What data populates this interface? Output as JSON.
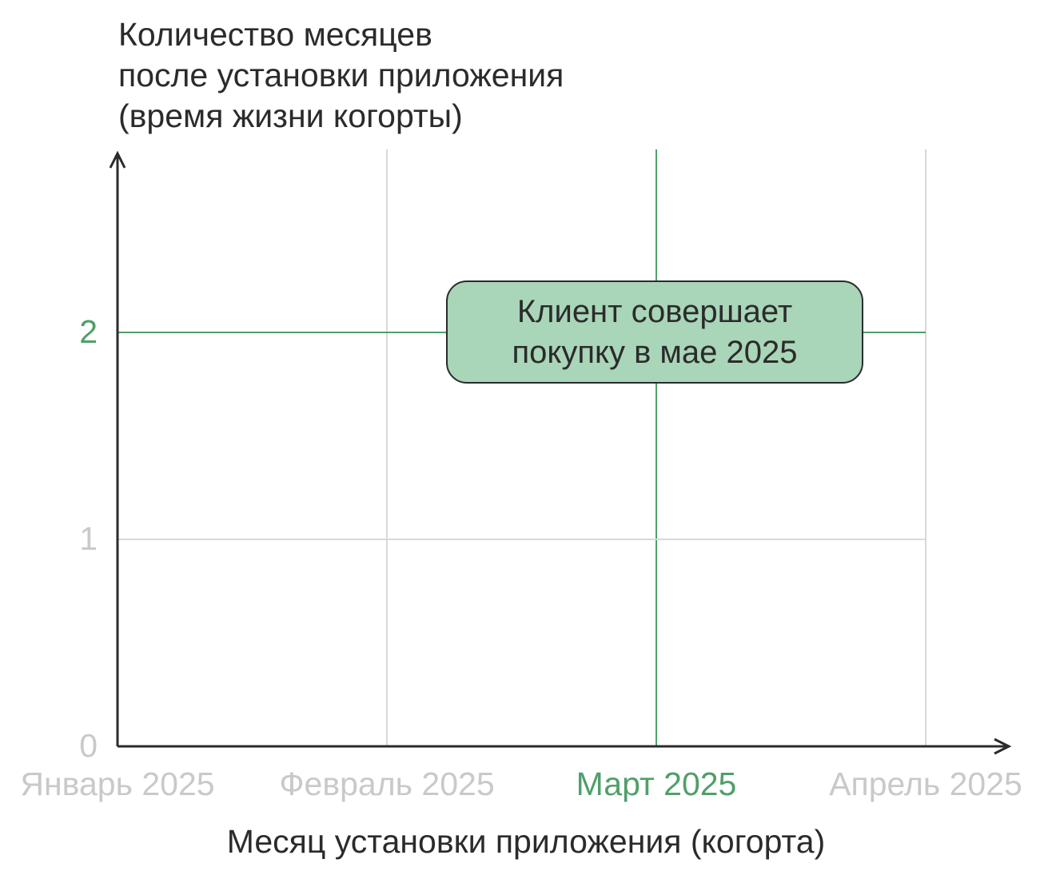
{
  "chart_data": {
    "type": "diagram",
    "ylabel_lines": [
      "Количество месяцев",
      "после установки приложения",
      "(время жизни когорты)"
    ],
    "xlabel": "Месяц установки приложения (когорта)",
    "categories": [
      "Январь 2025",
      "Февраль 2025",
      "Март 2025",
      "Апрель 2025"
    ],
    "y_ticks": [
      0,
      1,
      2
    ],
    "ylim": [
      0,
      2.9
    ],
    "highlight": {
      "x_category": "Март 2025",
      "y_value": 2
    },
    "annotation": {
      "lines": [
        "Клиент совершает",
        "покупку в мае 2025"
      ]
    },
    "colors": {
      "axis": "#2b2b2b",
      "grid": "#d9d9d9",
      "highlight": "#4f9f6a",
      "muted_label": "#c9c9c9",
      "callout_fill": "#a9d5b8"
    }
  }
}
